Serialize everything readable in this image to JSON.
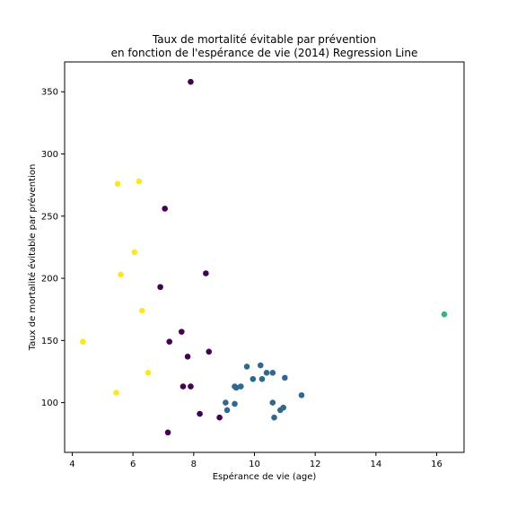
{
  "chart_data": {
    "type": "scatter",
    "title_line1": "Taux de mortalité évitable par prévention",
    "title_line2": "en fonction de l'espérance de vie (2014) Regression Line",
    "xlabel": "Espérance de vie (age)",
    "ylabel": "Taux de mortalité évitable par prévention",
    "xlim": [
      3.75,
      16.9
    ],
    "ylim": [
      60,
      374
    ],
    "x_ticks": [
      4,
      6,
      8,
      10,
      12,
      14,
      16
    ],
    "y_ticks": [
      100,
      150,
      200,
      250,
      300,
      350
    ],
    "grid": false,
    "colors": {
      "cluster_purple": "#440154",
      "cluster_blue": "#31688e",
      "cluster_green": "#35b779",
      "cluster_yellow": "#fde725"
    },
    "series": [
      {
        "color": "#440154",
        "points": [
          [
            7.9,
            358
          ],
          [
            7.05,
            256
          ],
          [
            8.4,
            204
          ],
          [
            6.9,
            193
          ],
          [
            7.6,
            157
          ],
          [
            7.2,
            149
          ],
          [
            8.5,
            141
          ],
          [
            7.8,
            137
          ],
          [
            7.65,
            113
          ],
          [
            7.9,
            113
          ],
          [
            8.2,
            91
          ],
          [
            8.85,
            88
          ],
          [
            7.15,
            76
          ]
        ]
      },
      {
        "color": "#31688e",
        "points": [
          [
            9.75,
            129
          ],
          [
            10.2,
            130
          ],
          [
            10.4,
            124
          ],
          [
            10.6,
            124
          ],
          [
            9.95,
            119
          ],
          [
            10.25,
            119
          ],
          [
            11.0,
            120
          ],
          [
            9.35,
            113
          ],
          [
            9.4,
            112
          ],
          [
            9.55,
            113
          ],
          [
            11.55,
            106
          ],
          [
            9.05,
            100
          ],
          [
            9.35,
            99
          ],
          [
            10.6,
            100
          ],
          [
            9.1,
            94
          ],
          [
            10.85,
            94
          ],
          [
            10.95,
            96
          ],
          [
            10.65,
            88
          ]
        ]
      },
      {
        "color": "#35b779",
        "points": [
          [
            16.25,
            171
          ]
        ]
      },
      {
        "color": "#fde725",
        "points": [
          [
            6.2,
            278
          ],
          [
            5.5,
            276
          ],
          [
            6.05,
            221
          ],
          [
            5.6,
            203
          ],
          [
            6.3,
            174
          ],
          [
            4.35,
            149
          ],
          [
            6.5,
            124
          ],
          [
            5.45,
            108
          ]
        ]
      }
    ]
  }
}
